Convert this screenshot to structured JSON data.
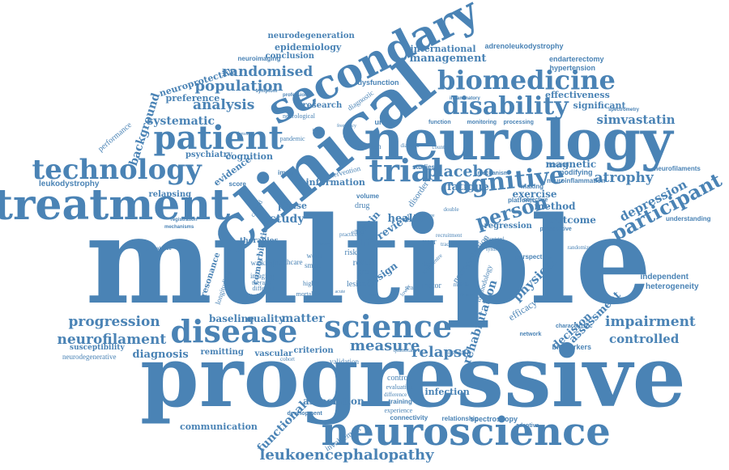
{
  "image": {
    "alt": "Word cloud",
    "color": "#4a83b5"
  },
  "words": [
    "multiple",
    "progressive",
    "clinical",
    "neurology",
    "treatment",
    "secondary",
    "patient",
    "biomedicine",
    "disability",
    "technology",
    "neuroscience",
    "disease",
    "science",
    "trial",
    "cognitive",
    "person",
    "participant",
    "leukoencephalopathy",
    "progression",
    "neurofilament",
    "impairment",
    "controlled",
    "decision",
    "assessment",
    "rehabilitation",
    "measure",
    "relapse",
    "physical",
    "depression",
    "placebo",
    "fatigue",
    "atrophy",
    "simvastatin",
    "randomised",
    "population",
    "analysis",
    "systematic",
    "management",
    "international",
    "adrenoleukodystrophy",
    "endarterectomy",
    "hypertension",
    "epidemiology",
    "neurodegeneration",
    "conclusion",
    "neuroimaging",
    "neuroprotective",
    "preference",
    "effectiveness",
    "significant",
    "background",
    "performance",
    "leukodystrophy",
    "relapsing",
    "evidence",
    "cognition",
    "psychiatry",
    "baseline",
    "quality",
    "matter",
    "susceptibility",
    "neurodegenerative",
    "diagnosis",
    "remitting",
    "vascular",
    "criterion",
    "association",
    "communication",
    "functional",
    "involvement",
    "infection",
    "connectivity",
    "spectroscopy",
    "biomarkers",
    "efficacy",
    "outcome",
    "method",
    "exercise",
    "health",
    "study",
    "phase",
    "magnetic",
    "modifying",
    "resonance",
    "longitudinal",
    "imaging",
    "therapy",
    "different",
    "walking",
    "smart",
    "week",
    "higher",
    "mortality",
    "lesion",
    "group",
    "result",
    "design",
    "review",
    "data",
    "motor",
    "scale",
    "drug",
    "brain",
    "life",
    "risk",
    "year",
    "independent",
    "heterogeneity",
    "neurofilaments",
    "understanding",
    "dysfunction",
    "diagnostic",
    "research",
    "neurological",
    "pandemic",
    "approach",
    "urinary",
    "function",
    "monitoring",
    "processing",
    "information",
    "intervention",
    "studies",
    "volume",
    "training",
    "control",
    "evaluation",
    "difference",
    "experience",
    "relationship",
    "development",
    "methodology",
    "neuroprotection",
    "platform",
    "making",
    "prospective",
    "perspective",
    "mechanism",
    "disorder",
    "validation",
    "cohort",
    "symptom",
    "professional",
    "inflammatory",
    "spectrometry",
    "characteristic",
    "neuroinflammation",
    "regression",
    "therapies",
    "impact",
    "score",
    "carotid",
    "objective",
    "adaptive",
    "hospital",
    "network",
    "randomized",
    "quantitative",
    "individual",
    "diabetes",
    "multicentre",
    "recruitment",
    "tract",
    "double",
    "blind",
    "lower",
    "mobile",
    "related",
    "effect",
    "country",
    "frequency",
    "rate",
    "dementia",
    "registration",
    "mechanisms",
    "prevalence",
    "associated",
    "syndrome",
    "comorbidities",
    "healthcare",
    "practice",
    "primary",
    "change",
    "time",
    "acute",
    "system",
    "survey",
    "activity"
  ]
}
